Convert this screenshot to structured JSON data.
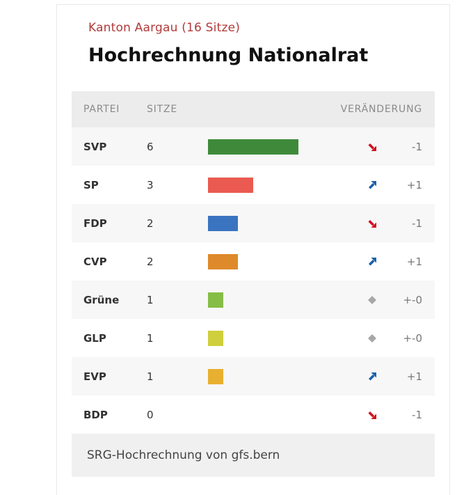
{
  "header": {
    "subtitle": "Kanton Aargau (16 Sitze)",
    "title": "Hochrechnung Nationalrat"
  },
  "columns": {
    "party": "PARTEI",
    "seats": "SITZE",
    "change": "VERÄNDERUNG"
  },
  "chart_data": {
    "type": "bar",
    "title": "Hochrechnung Nationalrat",
    "subtitle": "Kanton Aargau (16 Sitze)",
    "categories": [
      "SVP",
      "SP",
      "FDP",
      "CVP",
      "Grüne",
      "GLP",
      "EVP",
      "BDP"
    ],
    "values": [
      6,
      3,
      2,
      2,
      1,
      1,
      1,
      0
    ],
    "changes": [
      "-1",
      "+1",
      "-1",
      "+1",
      "+-0",
      "+-0",
      "+1",
      "-1"
    ],
    "trends": [
      "down",
      "up",
      "down",
      "up",
      "neutral",
      "neutral",
      "up",
      "down"
    ],
    "colors": [
      "#3f8a3a",
      "#ea5a50",
      "#3a74c0",
      "#de8a2a",
      "#86bd47",
      "#cfcf3e",
      "#e8b030",
      "#999999"
    ],
    "orientation": "horizontal"
  },
  "icon_colors": {
    "down": "#d0101e",
    "up": "#1a5faa",
    "neutral": "#a8a8a8"
  },
  "footer": {
    "source": "SRG-Hochrechnung von gfs.bern"
  }
}
